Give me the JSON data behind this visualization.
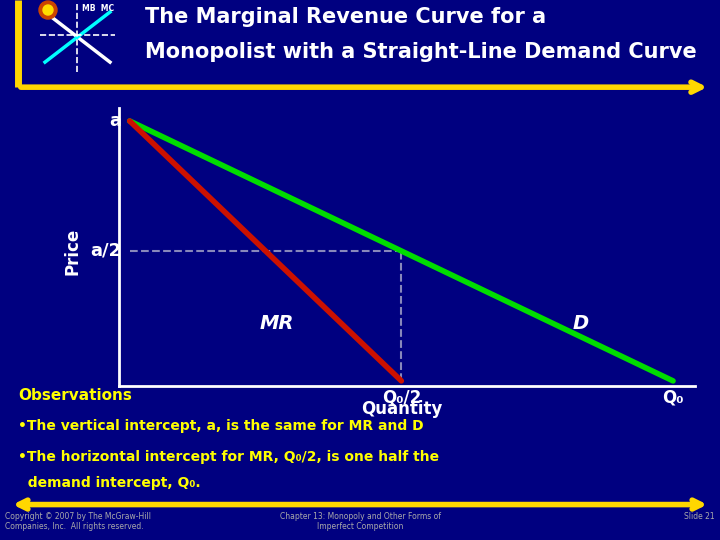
{
  "bg_color": "#000080",
  "title_line1": "The Marginal Revenue Curve for a",
  "title_line2": "Monopolist with a Straight-Line Demand Curve",
  "title_color": "#FFFFFF",
  "title_fontsize": 15,
  "ylabel": "Price",
  "xlabel": "Quantity",
  "ylabel_color": "#FFFFFF",
  "xlabel_color": "#FFFFFF",
  "axis_color": "#FFFFFF",
  "demand_color": "#00DD00",
  "mr_color": "#CC1100",
  "dashed_color": "#8888BB",
  "a_label": "a",
  "a2_label": "a/2",
  "Q0_label": "Q₀",
  "Q02_label": "Q₀/2",
  "MR_label": "MR",
  "D_label": "D",
  "obs_title": "Observations",
  "obs1": "•The vertical intercept, a, is the same for MR and D",
  "obs2": "•The horizontal intercept for MR, Q₀/2, is one half the",
  "obs3": "  demand intercept, Q₀.",
  "obs_color": "#FFFF00",
  "obs_title_color": "#FFFF00",
  "arrow_color": "#FFD700",
  "copyright": "Copyright © 2007 by The McGraw-Hill\nCompanies, Inc.  All rights reserved.",
  "slide_text": "Chapter 13: Monopoly and Other Forms of\nImperfect Competition",
  "slide_num": "Slide 21",
  "footer_color": "#AAAAAA",
  "a_val": 10,
  "Q0_val": 10,
  "Q02_val": 5,
  "a2_val": 5,
  "line_width": 3
}
